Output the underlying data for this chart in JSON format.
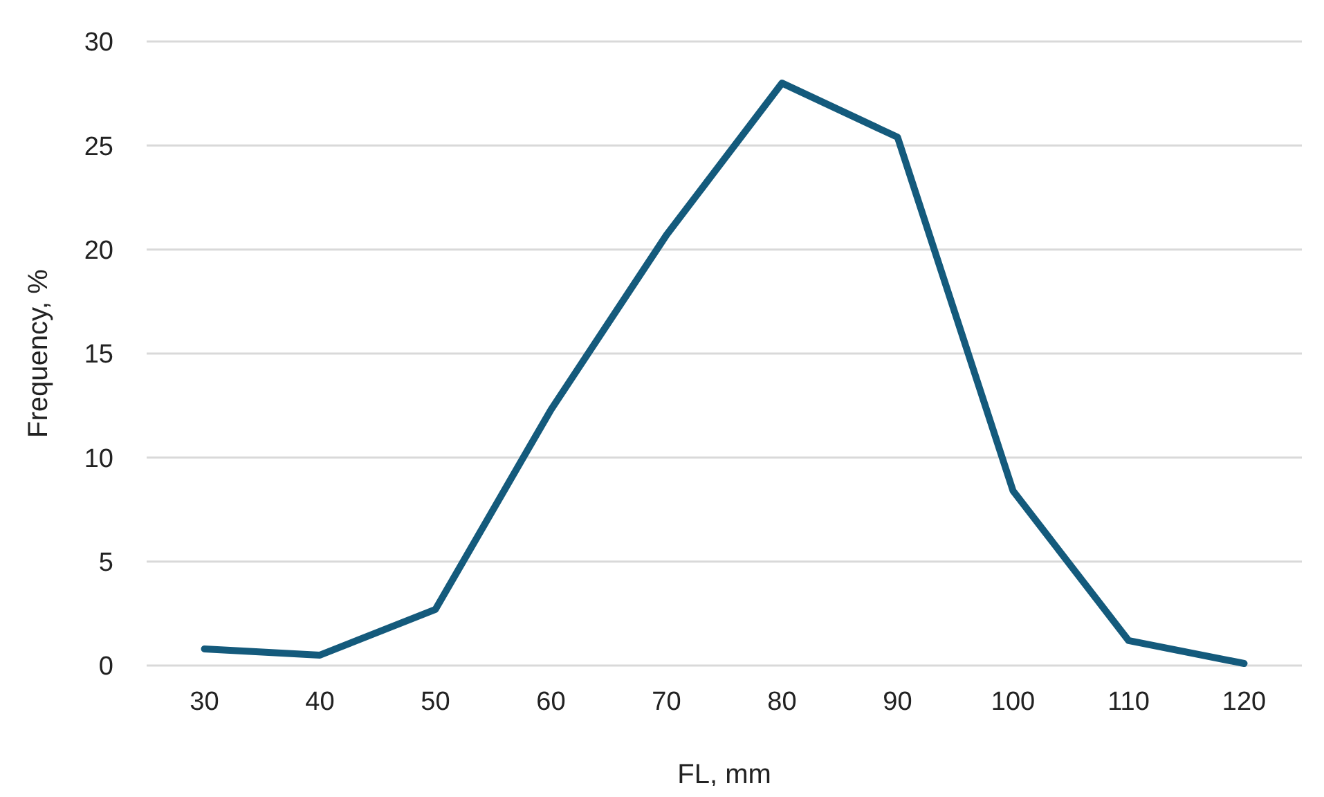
{
  "chart_data": {
    "type": "line",
    "xlabel": "FL, mm",
    "ylabel": "Frequency, %",
    "categories": [
      "30",
      "40",
      "50",
      "60",
      "70",
      "80",
      "90",
      "100",
      "110",
      "120"
    ],
    "series": [
      {
        "color": "#145a7c",
        "values": [
          0.8,
          0.5,
          2.7,
          12.3,
          20.7,
          28.0,
          25.4,
          8.4,
          1.2,
          0.1
        ]
      }
    ],
    "ylim": [
      0,
      30
    ],
    "yticks": [
      0,
      5,
      10,
      15,
      20,
      25,
      30
    ],
    "grid": "y",
    "marker": "none",
    "line_style": "solid"
  }
}
